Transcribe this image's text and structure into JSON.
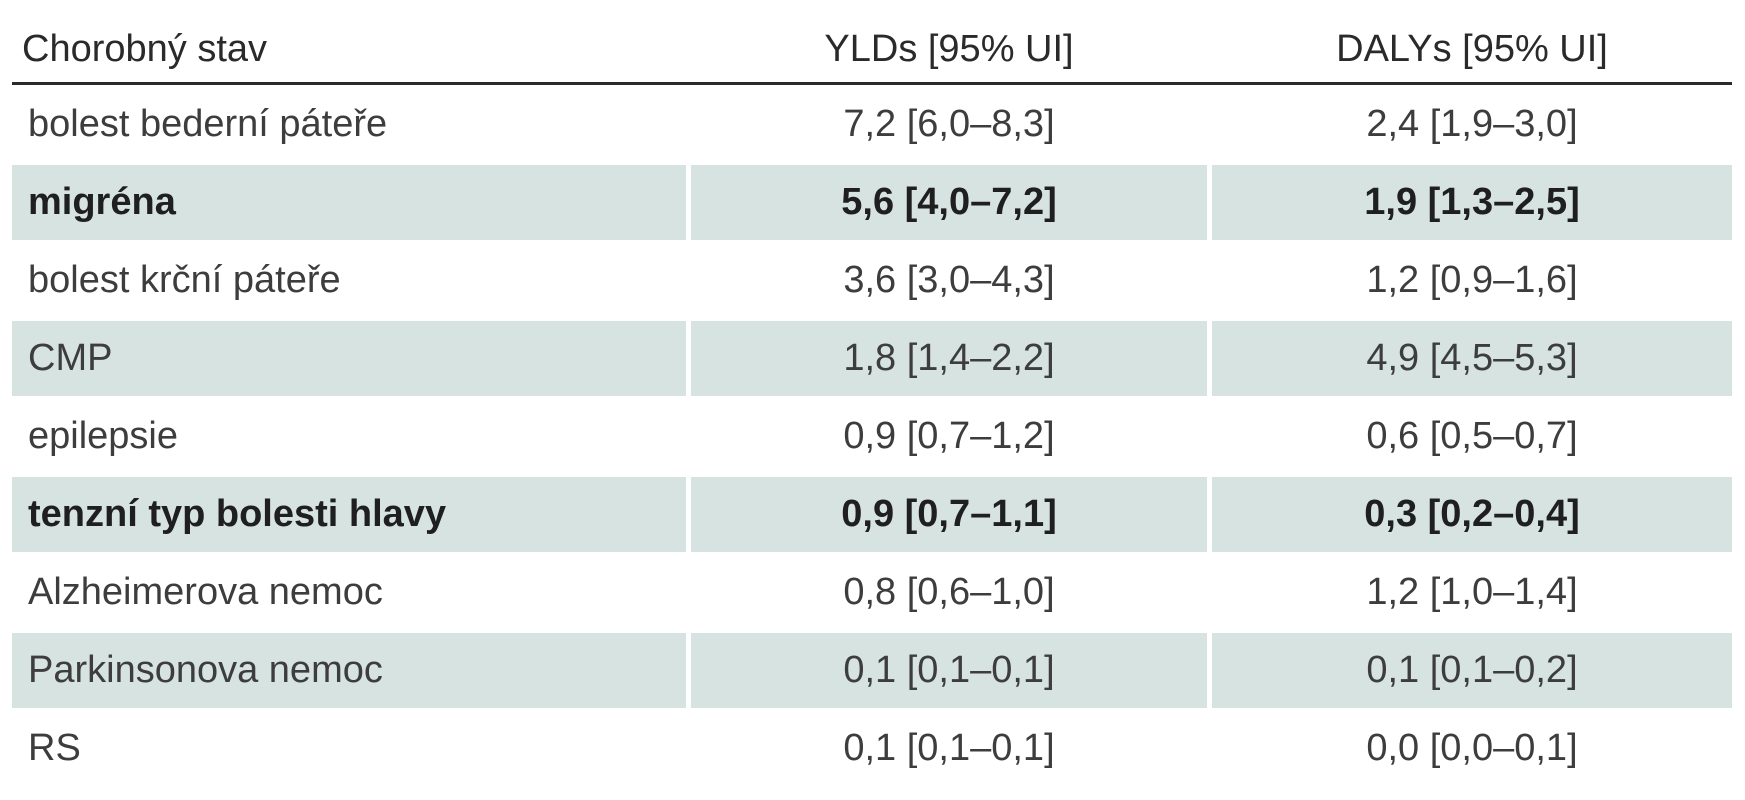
{
  "table": {
    "headers": [
      "Chorobný stav",
      "YLDs [95% UI]",
      "DALYs [95% UI]"
    ],
    "rows": [
      {
        "condition": "bolest bederní páteře",
        "ylds": "7,2 [6,0–8,3]",
        "dalys": "2,4 [1,9–3,0]"
      },
      {
        "condition": "migréna",
        "ylds": "5,6 [4,0–7,2]",
        "dalys": "1,9 [1,3–2,5]"
      },
      {
        "condition": "bolest krční páteře",
        "ylds": "3,6 [3,0–4,3]",
        "dalys": "1,2 [0,9–1,6]"
      },
      {
        "condition": "CMP",
        "ylds": "1,8 [1,4–2,2]",
        "dalys": "4,9 [4,5–5,3]"
      },
      {
        "condition": "epilepsie",
        "ylds": "0,9 [0,7–1,2]",
        "dalys": "0,6 [0,5–0,7]"
      },
      {
        "condition": "tenzní typ bolesti hlavy",
        "ylds": "0,9 [0,7–1,1]",
        "dalys": "0,3 [0,2–0,4]"
      },
      {
        "condition": "Alzheimerova nemoc",
        "ylds": "0,8 [0,6–1,0]",
        "dalys": "1,2 [1,0–1,4]"
      },
      {
        "condition": "Parkinsonova nemoc",
        "ylds": "0,1 [0,1–0,1]",
        "dalys": "0,1 [0,1–0,2]"
      },
      {
        "condition": "RS",
        "ylds": "0,1 [0,1–0,1]",
        "dalys": "0,0 [0,0–0,1]"
      }
    ],
    "colors": {
      "row_shading": "#d6e3e0",
      "header_rule": "#2b2b2b",
      "text": "#3d3d3d"
    }
  }
}
